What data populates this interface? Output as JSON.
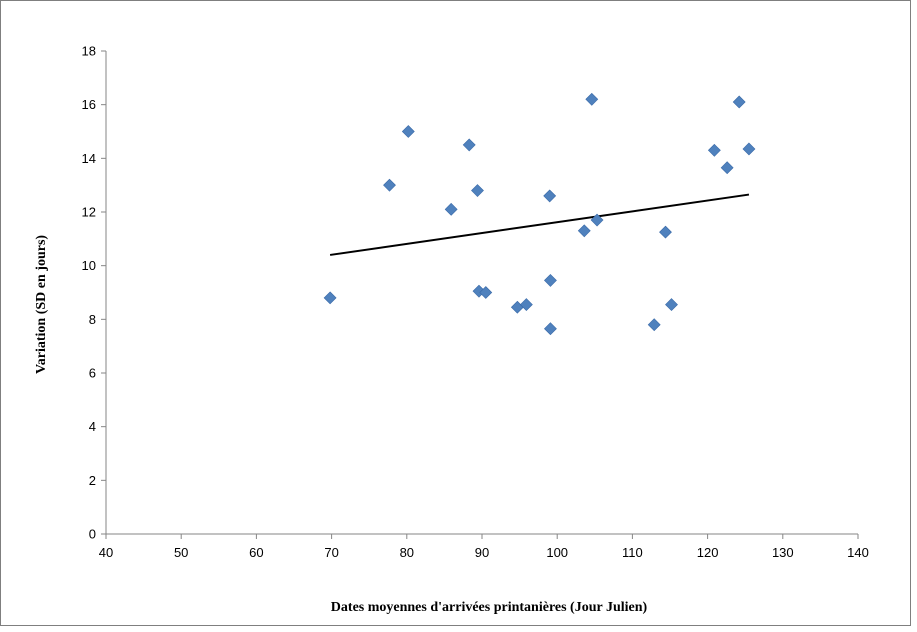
{
  "chart_data": {
    "type": "scatter",
    "title": "",
    "xlabel": "Dates moyennes d'arrivées printanières (Jour Julien)",
    "ylabel": "Variation (SD en jours)",
    "xlim": [
      40,
      140
    ],
    "ylim": [
      0,
      18
    ],
    "xticks": [
      "40",
      "50",
      "60",
      "70",
      "80",
      "90",
      "100",
      "110",
      "120",
      "130",
      "140"
    ],
    "yticks": [
      "0",
      "2",
      "4",
      "6",
      "8",
      "10",
      "12",
      "14",
      "16",
      "18"
    ],
    "grid": false,
    "legend": "none",
    "marker": "diamond",
    "marker_color": "#4f81bd",
    "trendline_color": "#000000",
    "points": [
      {
        "x": 69.8,
        "y": 8.8
      },
      {
        "x": 77.7,
        "y": 13.0
      },
      {
        "x": 80.2,
        "y": 15.0
      },
      {
        "x": 85.9,
        "y": 12.1
      },
      {
        "x": 88.3,
        "y": 14.5
      },
      {
        "x": 89.4,
        "y": 12.8
      },
      {
        "x": 89.6,
        "y": 9.05
      },
      {
        "x": 90.5,
        "y": 9.0
      },
      {
        "x": 94.7,
        "y": 8.45
      },
      {
        "x": 95.9,
        "y": 8.55
      },
      {
        "x": 99.0,
        "y": 12.6
      },
      {
        "x": 99.1,
        "y": 9.45
      },
      {
        "x": 99.1,
        "y": 7.65
      },
      {
        "x": 103.6,
        "y": 11.3
      },
      {
        "x": 104.6,
        "y": 16.2
      },
      {
        "x": 105.3,
        "y": 11.7
      },
      {
        "x": 112.9,
        "y": 7.8
      },
      {
        "x": 114.4,
        "y": 11.25
      },
      {
        "x": 115.2,
        "y": 8.55
      },
      {
        "x": 120.9,
        "y": 14.3
      },
      {
        "x": 122.6,
        "y": 13.65
      },
      {
        "x": 124.2,
        "y": 16.1
      },
      {
        "x": 125.5,
        "y": 14.35
      }
    ],
    "trendline": {
      "x": [
        69.8,
        125.5
      ],
      "y": [
        10.4,
        12.65
      ]
    }
  }
}
